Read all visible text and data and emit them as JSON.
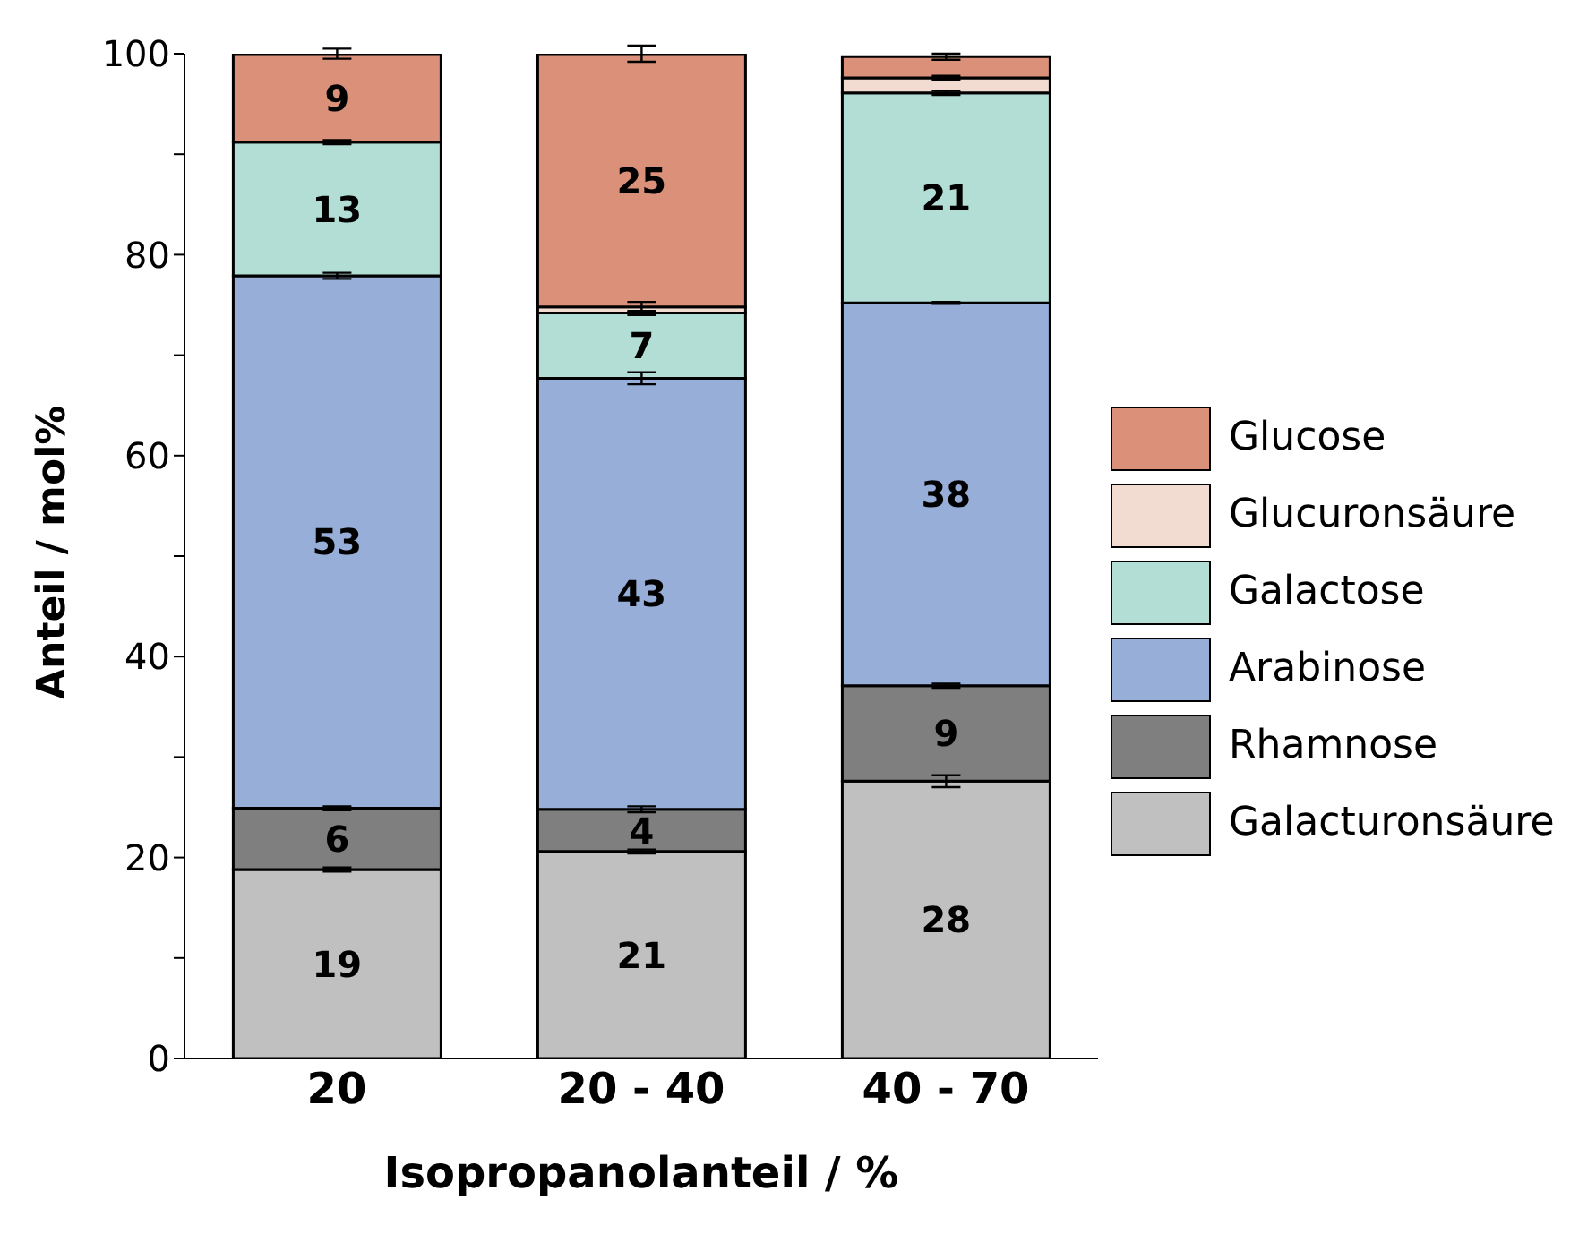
{
  "chart_data": {
    "type": "bar",
    "stacked": true,
    "xlabel": "Isopropanolanteil / %",
    "ylabel": "Anteil / mol%",
    "categories": [
      "20",
      "20 - 40",
      "40 - 70"
    ],
    "ylim": [
      0,
      100
    ],
    "yticks": [
      0,
      {
        "value": 10,
        "label": null
      },
      20,
      {
        "value": 30,
        "label": null
      },
      40,
      {
        "value": 50,
        "label": null
      },
      60,
      {
        "value": 70,
        "label": null
      },
      80,
      {
        "value": 90,
        "label": null
      },
      100
    ],
    "legend": "right",
    "series": [
      {
        "name": "Galacturonsäure",
        "color": "#c0c0c0",
        "values": [
          18.8,
          20.6,
          27.6
        ],
        "errors": [
          0.2,
          0.2,
          0.6
        ],
        "value_labels": [
          "19",
          "21",
          "28"
        ]
      },
      {
        "name": "Rhamnose",
        "color": "#7f7f7f",
        "values": [
          6.1,
          4.2,
          9.5
        ],
        "errors": [
          0.2,
          0.3,
          0.2
        ],
        "value_labels": [
          "6",
          "4",
          "9"
        ]
      },
      {
        "name": "Arabinose",
        "color": "#96aed8",
        "values": [
          53.0,
          42.9,
          38.1
        ],
        "errors": [
          0.3,
          0.6,
          0.1
        ],
        "value_labels": [
          "53",
          "43",
          "38"
        ]
      },
      {
        "name": "Galactose",
        "color": "#b2ded6",
        "values": [
          13.3,
          6.5,
          20.9
        ],
        "errors": [
          0.2,
          0.2,
          0.2
        ],
        "value_labels": [
          "13",
          "7",
          "21"
        ]
      },
      {
        "name": "Glucuronsäure",
        "color": "#f2dcd2",
        "values": [
          0,
          0.6,
          1.5
        ],
        "errors": [
          null,
          0.5,
          0.2
        ]
      },
      {
        "name": "Glucose",
        "color": "#db907a",
        "values": [
          8.8,
          25.2,
          2.1
        ],
        "errors": [
          0.5,
          0.8,
          0.3
        ],
        "value_labels": [
          "9",
          "25",
          null
        ]
      }
    ]
  }
}
